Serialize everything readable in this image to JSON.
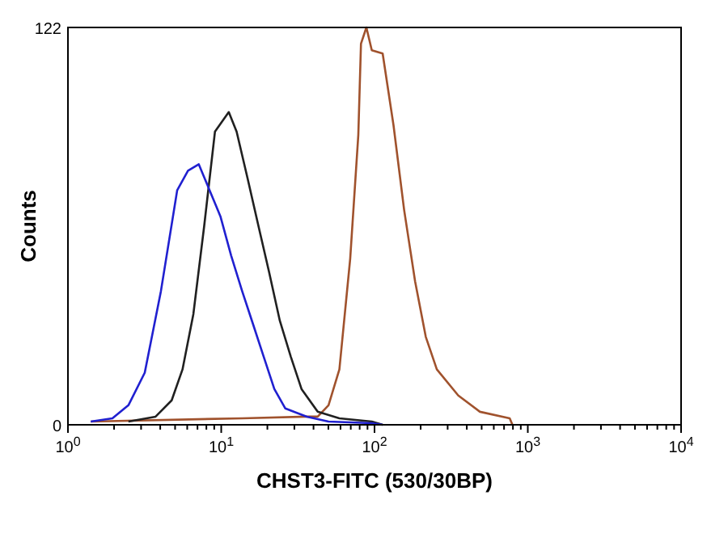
{
  "chart_data": {
    "type": "line",
    "xlabel": "CHST3-FITC (530/30BP)",
    "ylabel": "Counts",
    "log": "x",
    "line_style": "solid",
    "xlim": [
      1,
      10000
    ],
    "ylim": [
      0,
      122
    ],
    "xticks": [
      {
        "value": 1,
        "label": "10$^{0}$"
      },
      {
        "value": 2,
        "label": null
      },
      {
        "value": 3,
        "label": null
      },
      {
        "value": 4,
        "label": null
      },
      {
        "value": 5,
        "label": null
      },
      {
        "value": 6,
        "label": null
      },
      {
        "value": 7,
        "label": null
      },
      {
        "value": 8,
        "label": null
      },
      {
        "value": 9,
        "label": null
      },
      {
        "value": 10,
        "label": "10$^{1}$"
      },
      {
        "value": 20,
        "label": null
      },
      {
        "value": 30,
        "label": null
      },
      {
        "value": 40,
        "label": null
      },
      {
        "value": 50,
        "label": null
      },
      {
        "value": 60,
        "label": null
      },
      {
        "value": 70,
        "label": null
      },
      {
        "value": 80,
        "label": null
      },
      {
        "value": 90,
        "label": null
      },
      {
        "value": 100,
        "label": "10$^{2}$"
      },
      {
        "value": 200,
        "label": null
      },
      {
        "value": 300,
        "label": null
      },
      {
        "value": 400,
        "label": null
      },
      {
        "value": 500,
        "label": null
      },
      {
        "value": 600,
        "label": null
      },
      {
        "value": 700,
        "label": null
      },
      {
        "value": 800,
        "label": null
      },
      {
        "value": 900,
        "label": null
      },
      {
        "value": 1000,
        "label": "10$^{3}$"
      },
      {
        "value": 2000,
        "label": null
      },
      {
        "value": 3000,
        "label": null
      },
      {
        "value": 4000,
        "label": null
      },
      {
        "value": 5000,
        "label": null
      },
      {
        "value": 6000,
        "label": null
      },
      {
        "value": 7000,
        "label": null
      },
      {
        "value": 8000,
        "label": null
      },
      {
        "value": 9000,
        "label": null
      },
      {
        "value": 10000,
        "label": "10$^{4}$"
      }
    ],
    "yticks": [
      0,
      122
    ],
    "series": [
      {
        "color": "#a0522d",
        "x": [
          1.41,
          13.7,
          36.2,
          42.6,
          50.1,
          59,
          69.4,
          78.4,
          81.6,
          88.5,
          96,
          113,
          133,
          156,
          184,
          216,
          255,
          352,
          487,
          762,
          794
        ],
        "values": [
          1,
          2,
          2.5,
          2.5,
          6,
          17,
          51,
          89,
          117,
          122,
          115,
          114,
          92,
          66,
          44,
          27,
          17,
          9,
          4,
          2,
          0
        ]
      },
      {
        "color": "#202020",
        "x": [
          2.48,
          3.73,
          4.75,
          5.59,
          6.58,
          7.74,
          9.1,
          11.2,
          12.6,
          14.8,
          17.5,
          20.5,
          24.1,
          28.4,
          33.4,
          42.6,
          59,
          96,
          113
        ],
        "values": [
          1,
          2.5,
          7.5,
          17,
          34,
          61,
          90,
          96,
          90,
          76,
          61,
          47,
          32,
          21,
          11,
          4,
          2,
          1,
          0
        ]
      },
      {
        "color": "#2020d0",
        "x": [
          1.41,
          1.95,
          2.48,
          3.17,
          4.04,
          5.16,
          6.07,
          7.14,
          8.4,
          9.88,
          11.6,
          13.7,
          16.1,
          18.9,
          22.2,
          26.2,
          36.2,
          50.1,
          96,
          113
        ],
        "values": [
          1,
          2,
          6,
          16,
          41,
          72,
          78,
          80,
          72,
          64,
          52,
          41,
          31,
          21,
          11,
          5,
          2.5,
          1,
          0.5,
          0
        ]
      }
    ]
  }
}
